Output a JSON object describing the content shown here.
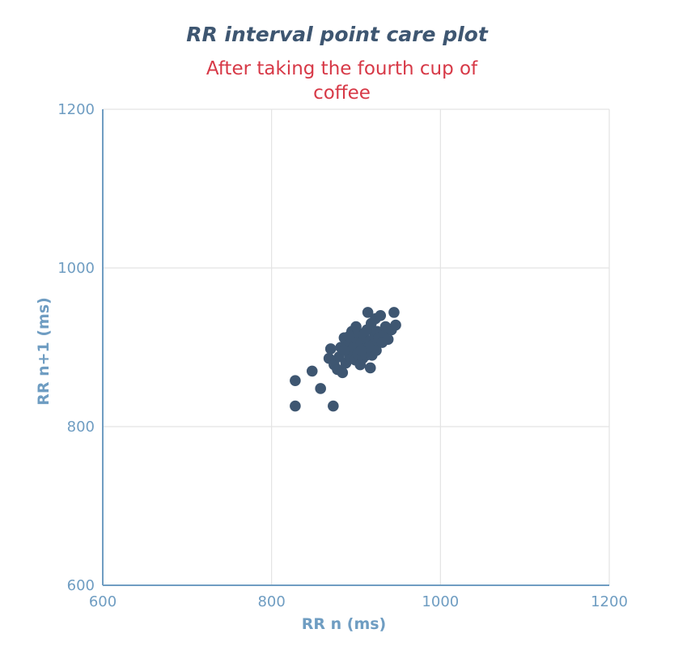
{
  "chart_data": {
    "type": "scatter",
    "title": "RR interval point care plot",
    "subtitle": "After taking the fourth cup of coffee",
    "xlabel": "RR n (ms)",
    "ylabel": "RR n+1 (ms)",
    "xlim": [
      600,
      1200
    ],
    "ylim": [
      600,
      1200
    ],
    "x_ticks": [
      "600",
      "800",
      "1000",
      "1200"
    ],
    "y_ticks": [
      "600",
      "800",
      "1000",
      "1200"
    ],
    "grid": true,
    "colors": {
      "points": "#3e5671",
      "axes": "#6f9dc2",
      "grid": "#e3e3e3",
      "title": "#3e5671",
      "subtitle": "#d73947"
    },
    "series": [
      {
        "points": [
          [
            828,
            858
          ],
          [
            828,
            826
          ],
          [
            848,
            870
          ],
          [
            858,
            848
          ],
          [
            873,
            826
          ],
          [
            868,
            886
          ],
          [
            870,
            898
          ],
          [
            874,
            878
          ],
          [
            878,
            872
          ],
          [
            880,
            888
          ],
          [
            882,
            900
          ],
          [
            884,
            868
          ],
          [
            886,
            912
          ],
          [
            888,
            880
          ],
          [
            890,
            896
          ],
          [
            892,
            906
          ],
          [
            893,
            888
          ],
          [
            895,
            920
          ],
          [
            897,
            900
          ],
          [
            899,
            884
          ],
          [
            900,
            912
          ],
          [
            902,
            892
          ],
          [
            903,
            918
          ],
          [
            905,
            878
          ],
          [
            906,
            905
          ],
          [
            908,
            886
          ],
          [
            909,
            915
          ],
          [
            910,
            898
          ],
          [
            912,
            890
          ],
          [
            913,
            922
          ],
          [
            914,
            944
          ],
          [
            916,
            908
          ],
          [
            917,
            874
          ],
          [
            918,
            930
          ],
          [
            919,
            890
          ],
          [
            920,
            903
          ],
          [
            922,
            914
          ],
          [
            923,
            936
          ],
          [
            924,
            896
          ],
          [
            925,
            920
          ],
          [
            927,
            912
          ],
          [
            929,
            940
          ],
          [
            931,
            906
          ],
          [
            933,
            918
          ],
          [
            935,
            926
          ],
          [
            938,
            910
          ],
          [
            942,
            922
          ],
          [
            945,
            944
          ],
          [
            947,
            928
          ],
          [
            900,
            926
          ],
          [
            892,
            914
          ],
          [
            886,
            896
          ],
          [
            915,
            900
          ],
          [
            906,
            896
          ]
        ]
      }
    ]
  }
}
